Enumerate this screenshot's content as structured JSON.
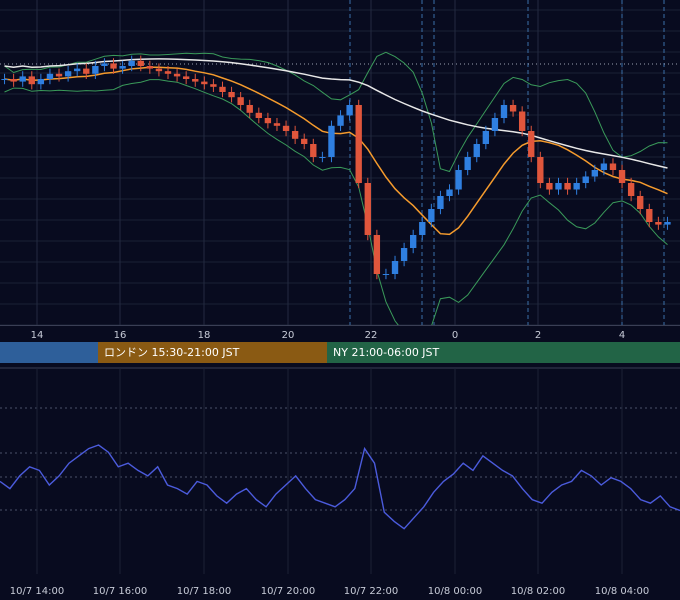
{
  "chart_data": [
    {
      "type": "candlestick",
      "title": "",
      "xlabel": "",
      "ylabel": "",
      "x_ticks": [
        "14",
        "16",
        "18",
        "20",
        "22",
        "0",
        "2",
        "4"
      ],
      "overlays": [
        "Bollinger Bands",
        "Moving Average (orange)",
        "Moving Average (white)"
      ],
      "price_scale_levels": [
        60,
        40,
        20,
        0,
        -20,
        -40,
        -60,
        -80,
        -100,
        -120
      ],
      "description_values": {
        "close_series": [
          40,
          38,
          42,
          36,
          40,
          44,
          42,
          46,
          48,
          44,
          50,
          52,
          48,
          50,
          54,
          50,
          48,
          46,
          44,
          42,
          40,
          38,
          36,
          34,
          30,
          26,
          20,
          14,
          10,
          6,
          4,
          0,
          -6,
          -10,
          -20,
          -20,
          4,
          12,
          20,
          -40,
          -80,
          -110,
          -110,
          -100,
          -90,
          -80,
          -70,
          -60,
          -50,
          -45,
          -30,
          -20,
          -10,
          0,
          10,
          20,
          15,
          0,
          -20,
          -40,
          -45,
          -40,
          -45,
          -40,
          -35,
          -30,
          -25,
          -30,
          -40,
          -50,
          -60,
          -70,
          -72,
          -70
        ]
      },
      "colors": {
        "up": "#2f7fe0",
        "down": "#e0563c",
        "ma_fast": "#f59b2d",
        "ma_slow": "#e8e8e8",
        "bands": "#3a9a5a"
      }
    },
    {
      "type": "line",
      "title": "",
      "x_ticks": [
        "10/7 14:00",
        "10/7 16:00",
        "10/7 18:00",
        "10/7 20:00",
        "10/7 22:00",
        "10/8 00:00",
        "10/8 02:00",
        "10/8 04:00"
      ],
      "values": [
        52,
        48,
        55,
        60,
        58,
        50,
        55,
        62,
        66,
        70,
        72,
        68,
        60,
        62,
        58,
        55,
        60,
        50,
        48,
        45,
        52,
        50,
        44,
        40,
        45,
        48,
        42,
        38,
        45,
        50,
        55,
        48,
        42,
        40,
        38,
        42,
        48,
        70,
        62,
        35,
        30,
        26,
        32,
        38,
        46,
        52,
        56,
        62,
        58,
        66,
        62,
        58,
        55,
        48,
        42,
        40,
        46,
        50,
        52,
        58,
        55,
        50,
        54,
        52,
        48,
        42,
        40,
        44,
        38,
        36
      ],
      "ylim": [
        0,
        100
      ],
      "color": "#4b5bdc"
    }
  ],
  "sessions": [
    {
      "label": "",
      "color": "#2e5f9a"
    },
    {
      "label": "ロンドン 15:30-21:00 JST",
      "color": "#8a5a13"
    },
    {
      "label": "NY 21:00-06:00 JST",
      "color": "#226446"
    }
  ]
}
